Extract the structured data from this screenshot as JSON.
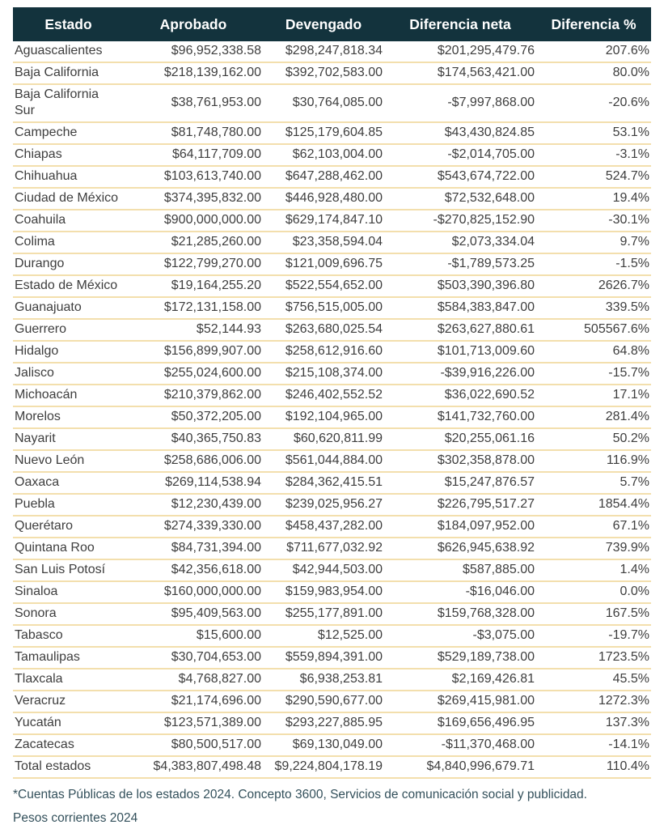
{
  "chart_data": {
    "type": "table",
    "title": "",
    "columns": [
      "Estado",
      "Aprobado",
      "Devengado",
      "Diferencia neta",
      "Diferencia %"
    ],
    "rows": [
      [
        "Aguascalientes",
        "$96,952,338.58",
        "$298,247,818.34",
        "$201,295,479.76",
        "207.6%"
      ],
      [
        "Baja California",
        "$218,139,162.00",
        "$392,702,583.00",
        "$174,563,421.00",
        "80.0%"
      ],
      [
        "Baja California Sur",
        "$38,761,953.00",
        "$30,764,085.00",
        "-$7,997,868.00",
        "-20.6%"
      ],
      [
        "Campeche",
        "$81,748,780.00",
        "$125,179,604.85",
        "$43,430,824.85",
        "53.1%"
      ],
      [
        "Chiapas",
        "$64,117,709.00",
        "$62,103,004.00",
        "-$2,014,705.00",
        "-3.1%"
      ],
      [
        "Chihuahua",
        "$103,613,740.00",
        "$647,288,462.00",
        "$543,674,722.00",
        "524.7%"
      ],
      [
        "Ciudad de México",
        "$374,395,832.00",
        "$446,928,480.00",
        "$72,532,648.00",
        "19.4%"
      ],
      [
        "Coahuila",
        "$900,000,000.00",
        "$629,174,847.10",
        "-$270,825,152.90",
        "-30.1%"
      ],
      [
        "Colima",
        "$21,285,260.00",
        "$23,358,594.04",
        "$2,073,334.04",
        "9.7%"
      ],
      [
        "Durango",
        "$122,799,270.00",
        "$121,009,696.75",
        "-$1,789,573.25",
        "-1.5%"
      ],
      [
        "Estado de México",
        "$19,164,255.20",
        "$522,554,652.00",
        "$503,390,396.80",
        "2626.7%"
      ],
      [
        "Guanajuato",
        "$172,131,158.00",
        "$756,515,005.00",
        "$584,383,847.00",
        "339.5%"
      ],
      [
        "Guerrero",
        "$52,144.93",
        "$263,680,025.54",
        "$263,627,880.61",
        "505567.6%"
      ],
      [
        "Hidalgo",
        "$156,899,907.00",
        "$258,612,916.60",
        "$101,713,009.60",
        "64.8%"
      ],
      [
        "Jalisco",
        "$255,024,600.00",
        "$215,108,374.00",
        "-$39,916,226.00",
        "-15.7%"
      ],
      [
        "Michoacán",
        "$210,379,862.00",
        "$246,402,552.52",
        "$36,022,690.52",
        "17.1%"
      ],
      [
        "Morelos",
        "$50,372,205.00",
        "$192,104,965.00",
        "$141,732,760.00",
        "281.4%"
      ],
      [
        "Nayarit",
        "$40,365,750.83",
        "$60,620,811.99",
        "$20,255,061.16",
        "50.2%"
      ],
      [
        "Nuevo León",
        "$258,686,006.00",
        "$561,044,884.00",
        "$302,358,878.00",
        "116.9%"
      ],
      [
        "Oaxaca",
        "$269,114,538.94",
        "$284,362,415.51",
        "$15,247,876.57",
        "5.7%"
      ],
      [
        "Puebla",
        "$12,230,439.00",
        "$239,025,956.27",
        "$226,795,517.27",
        "1854.4%"
      ],
      [
        "Querétaro",
        "$274,339,330.00",
        "$458,437,282.00",
        "$184,097,952.00",
        "67.1%"
      ],
      [
        "Quintana Roo",
        "$84,731,394.00",
        "$711,677,032.92",
        "$626,945,638.92",
        "739.9%"
      ],
      [
        "San Luis Potosí",
        "$42,356,618.00",
        "$42,944,503.00",
        "$587,885.00",
        "1.4%"
      ],
      [
        "Sinaloa",
        "$160,000,000.00",
        "$159,983,954.00",
        "-$16,046.00",
        "0.0%"
      ],
      [
        "Sonora",
        "$95,409,563.00",
        "$255,177,891.00",
        "$159,768,328.00",
        "167.5%"
      ],
      [
        "Tabasco",
        "$15,600.00",
        "$12,525.00",
        "-$3,075.00",
        "-19.7%"
      ],
      [
        "Tamaulipas",
        "$30,704,653.00",
        "$559,894,391.00",
        "$529,189,738.00",
        "1723.5%"
      ],
      [
        "Tlaxcala",
        "$4,768,827.00",
        "$6,938,253.81",
        "$2,169,426.81",
        "45.5%"
      ],
      [
        "Veracruz",
        "$21,174,696.00",
        "$290,590,677.00",
        "$269,415,981.00",
        "1272.3%"
      ],
      [
        "Yucatán",
        "$123,571,389.00",
        "$293,227,885.95",
        "$169,656,496.95",
        "137.3%"
      ],
      [
        "Zacatecas",
        "$80,500,517.00",
        "$69,130,049.00",
        "-$11,370,468.00",
        "-14.1%"
      ],
      [
        "Total estados",
        "$4,383,807,498.48",
        "$9,224,804,178.19",
        "$4,840,996,679.71",
        "110.4%"
      ]
    ]
  },
  "footnotes": {
    "line1": "*Cuentas Públicas de los estados 2024. Concepto 3600, Servicios de comunicación social y publicidad.",
    "line2": "Pesos corrientes 2024"
  },
  "colors": {
    "header_bg": "#13333d",
    "header_text": "#ffffff",
    "body_text": "#3e3e3e",
    "separator": "#f3dfad",
    "footnote_text": "#33505b"
  }
}
